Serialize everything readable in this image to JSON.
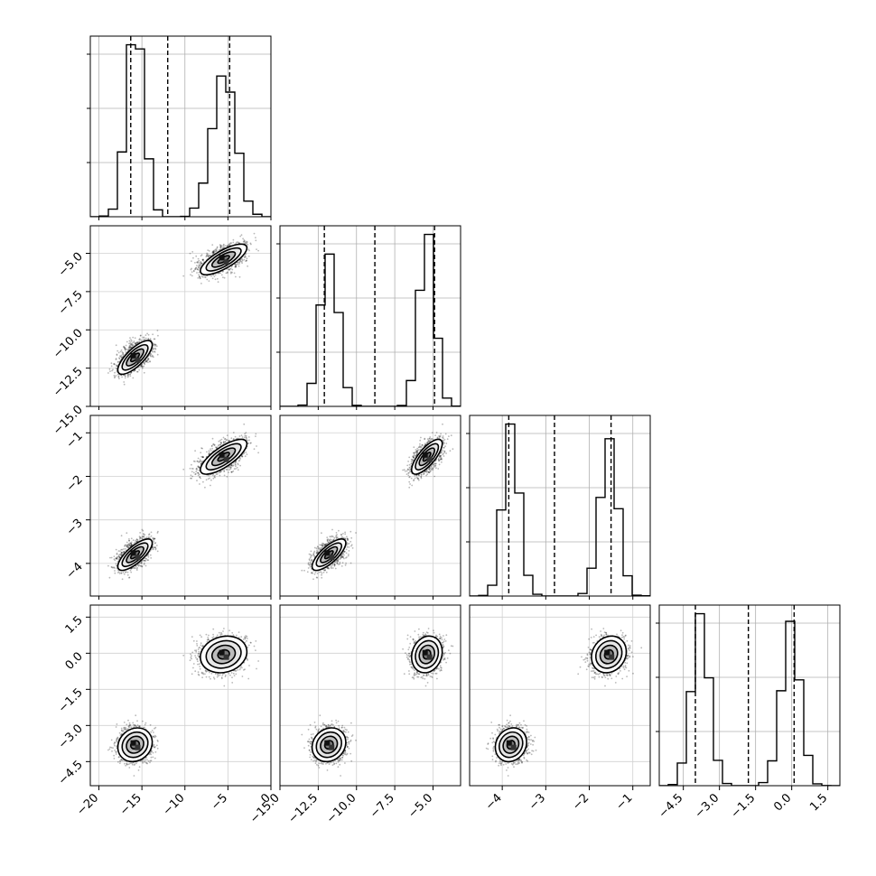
{
  "chart_data": {
    "type": "corner",
    "grid": true,
    "variables": [
      {
        "range": [
          -21,
          0
        ],
        "ticks": [
          -20,
          -15,
          -10,
          -5,
          0
        ],
        "tick_labels": [
          "−20",
          "−15",
          "−10",
          "−5",
          "0"
        ],
        "quantiles": [
          -16.3,
          -12.0,
          -4.8
        ],
        "modes": [
          -15.8,
          -5.5
        ],
        "spread": [
          1.0,
          1.35
        ]
      },
      {
        "range": [
          -15,
          -3.2
        ],
        "ticks": [
          -15,
          -12.5,
          -10,
          -7.5,
          -5
        ],
        "tick_labels": [
          "−15.0",
          "−12.5",
          "−10.0",
          "−7.5",
          "−5.0"
        ],
        "quantiles": [
          -12.1,
          -8.8,
          -4.9
        ],
        "modes": [
          -11.8,
          -5.4
        ],
        "spread": [
          0.55,
          0.5
        ]
      },
      {
        "range": [
          -4.75,
          -0.6
        ],
        "ticks": [
          -4,
          -3,
          -2,
          -1
        ],
        "tick_labels": [
          "−4",
          "−3",
          "−2",
          "−1"
        ],
        "quantiles": [
          -3.85,
          -2.8,
          -1.5
        ],
        "modes": [
          -3.8,
          -1.55
        ],
        "spread": [
          0.18,
          0.2
        ]
      },
      {
        "range": [
          -5.5,
          2.0
        ],
        "ticks": [
          -4.5,
          -3.0,
          -1.5,
          0.0,
          1.5
        ],
        "tick_labels": [
          "−4.5",
          "−3.0",
          "−1.5",
          "0.0",
          "1.5"
        ],
        "quantiles": [
          -4.0,
          -1.8,
          0.1
        ],
        "modes": [
          -3.8,
          -0.05
        ],
        "spread": [
          0.35,
          0.38
        ]
      }
    ],
    "histograms": [
      {
        "variable": 0,
        "peak_heights": [
          0.62,
          0.52
        ]
      },
      {
        "variable": 1,
        "peak_heights": [
          0.6,
          0.68
        ]
      },
      {
        "variable": 2,
        "peak_heights": [
          0.62,
          0.6
        ]
      },
      {
        "variable": 3,
        "peak_heights": [
          0.6,
          0.6
        ]
      }
    ],
    "clusters": [
      {
        "weight": 0.5,
        "center": [
          -15.8,
          -11.8,
          -3.8,
          -3.8
        ]
      },
      {
        "weight": 0.5,
        "center": [
          -5.5,
          -5.4,
          -1.55,
          -0.05
        ]
      }
    ]
  }
}
